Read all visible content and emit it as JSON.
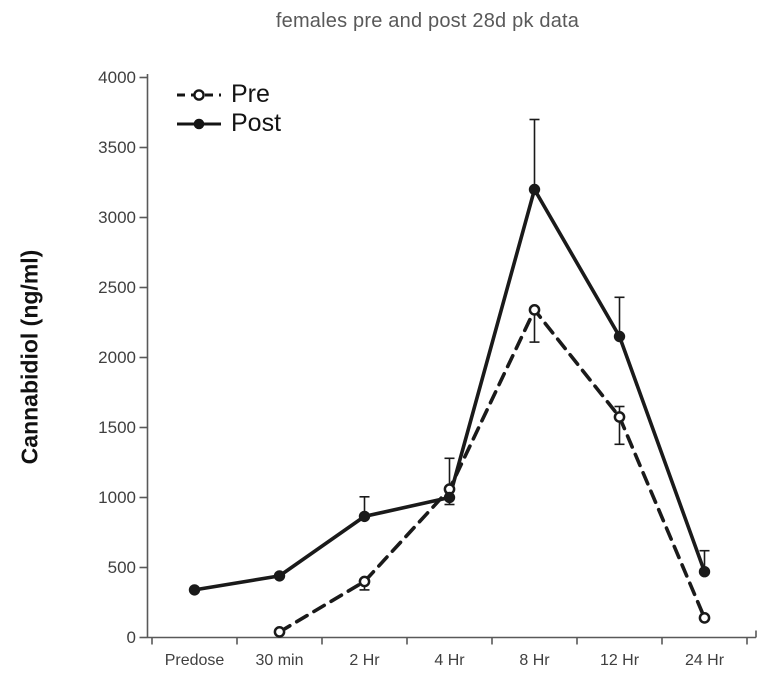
{
  "title": "females pre and post 28d pk data",
  "chart_data": {
    "type": "line",
    "title": "females pre and post 28d pk data",
    "xlabel": "",
    "ylabel": "Cannabidiol (ng/ml)",
    "categories": [
      "Predose",
      "30 min",
      "2 Hr",
      "4 Hr",
      "8 Hr",
      "12 Hr",
      "24 Hr"
    ],
    "series": [
      {
        "name": "Pre",
        "style": "dashed",
        "marker": "open-circle",
        "values": [
          null,
          40,
          400,
          1060,
          2340,
          1575,
          140
        ],
        "err_low": [
          null,
          null,
          340,
          null,
          2110,
          1380,
          null
        ],
        "err_high": [
          null,
          null,
          null,
          null,
          null,
          1650,
          null
        ]
      },
      {
        "name": "Post",
        "style": "solid",
        "marker": "filled-circle",
        "values": [
          340,
          440,
          865,
          1000,
          3200,
          2150,
          470
        ],
        "err_low": [
          null,
          null,
          null,
          950,
          null,
          null,
          null
        ],
        "err_high": [
          null,
          null,
          1005,
          1280,
          3700,
          2430,
          620
        ]
      }
    ],
    "ylim": [
      0,
      4000
    ],
    "yticks": [
      0,
      500,
      1000,
      1500,
      2000,
      2500,
      3000,
      3500,
      4000
    ],
    "grid": false,
    "legend_position": "top-left-inside",
    "colors": {
      "background": "#ffffff",
      "line": "#1a1a1a",
      "title": "#595959",
      "tick_label": "#3f3f3f",
      "axis": "#595959"
    }
  }
}
